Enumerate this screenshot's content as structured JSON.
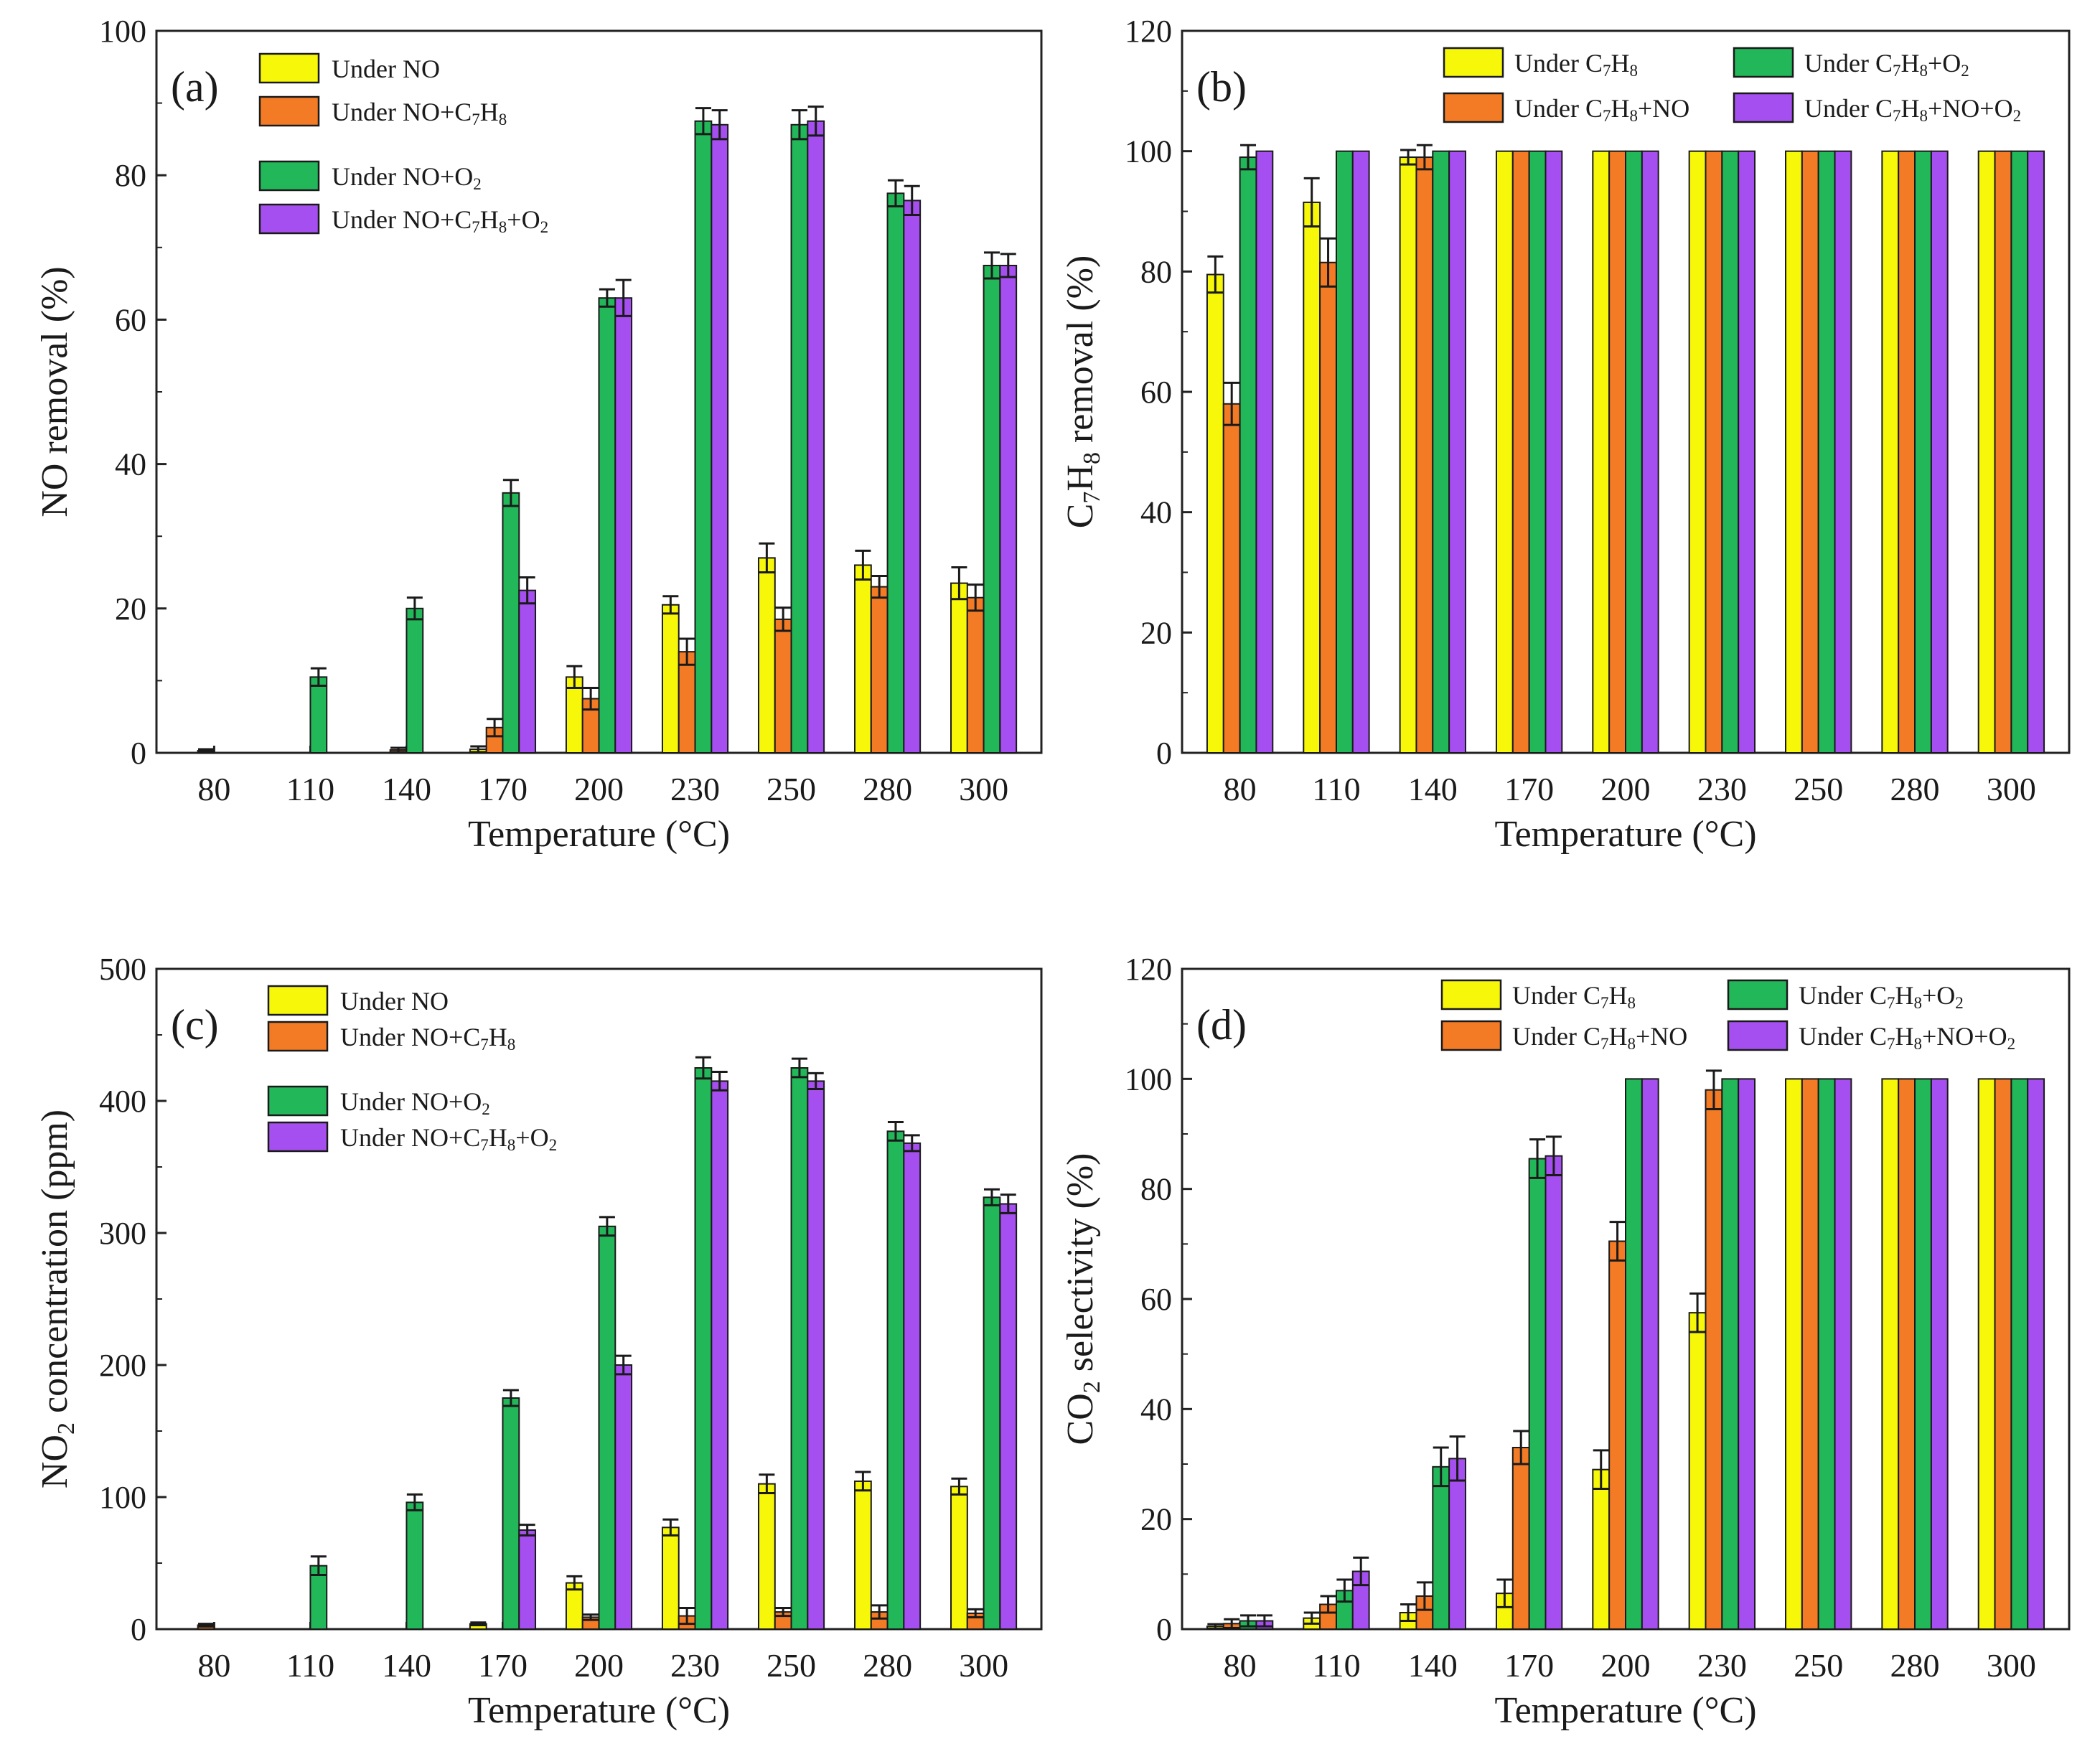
{
  "colors": {
    "yellow": "#f7f70a",
    "orange": "#f47b25",
    "green": "#22b85a",
    "purple": "#a64ff0",
    "axis": "#222222"
  },
  "chart_data": [
    {
      "id": "a",
      "panel_label": "(a)",
      "type": "bar",
      "xlabel": "Temperature (°C)",
      "ylabel": "NO removal (%)",
      "ylim": [
        0,
        100
      ],
      "yticks": [
        "0",
        "20",
        "40",
        "60",
        "80",
        "100"
      ],
      "categories": [
        "80",
        "110",
        "140",
        "170",
        "200",
        "230",
        "250",
        "280",
        "300"
      ],
      "legend": {
        "layout": "single-column",
        "position": "top-left"
      },
      "series": [
        {
          "name": "Under NO",
          "sub": "",
          "sup": "",
          "parts": [
            [
              "Under NO",
              ""
            ]
          ],
          "color": "yellow",
          "values": [
            0,
            0,
            0,
            0.5,
            10.5,
            20.5,
            27,
            26,
            23.5
          ],
          "errors": [
            0,
            0,
            0,
            0.4,
            1.5,
            1.2,
            2,
            2,
            2.2
          ]
        },
        {
          "name": "Under NO+C7H8",
          "parts": [
            [
              "Under NO+C",
              ""
            ],
            [
              "7",
              "sub"
            ],
            [
              "H",
              ""
            ],
            [
              "8",
              "sub"
            ]
          ],
          "color": "orange",
          "values": [
            0.3,
            0,
            0.4,
            3.5,
            7.5,
            14,
            18.5,
            23,
            21.5
          ],
          "errors": [
            0.2,
            0,
            0.3,
            1.2,
            1.5,
            1.8,
            1.6,
            1.5,
            1.8
          ]
        },
        {
          "name": "Under NO+O2",
          "parts": [
            [
              "Under NO+O",
              ""
            ],
            [
              "2",
              "sub"
            ]
          ],
          "color": "green",
          "values": [
            0,
            10.5,
            20,
            36,
            63,
            87.5,
            87,
            77.5,
            67.5
          ],
          "errors": [
            0,
            1.2,
            1.5,
            1.8,
            1.2,
            1.8,
            2,
            1.8,
            1.8
          ]
        },
        {
          "name": "Under NO+C7H8+O2",
          "parts": [
            [
              "Under NO+C",
              ""
            ],
            [
              "7",
              "sub"
            ],
            [
              "H",
              ""
            ],
            [
              "8",
              "sub"
            ],
            [
              "+O",
              ""
            ],
            [
              "2",
              "sub"
            ]
          ],
          "color": "purple",
          "values": [
            0,
            0,
            0,
            22.5,
            63,
            87,
            87.5,
            76.5,
            67.5
          ],
          "errors": [
            0,
            0,
            0,
            1.8,
            2.5,
            2,
            2,
            2,
            1.6
          ]
        }
      ]
    },
    {
      "id": "b",
      "panel_label": "(b)",
      "type": "bar",
      "xlabel": "Temperature (°C)",
      "ylabel": "C7H8 removal (%)",
      "ylabel_parts": [
        [
          "C",
          ""
        ],
        [
          "7",
          "sub"
        ],
        [
          "H",
          ""
        ],
        [
          "8",
          "sub"
        ],
        [
          " removal (%)",
          ""
        ]
      ],
      "ylim": [
        0,
        120
      ],
      "yticks": [
        "0",
        "20",
        "40",
        "60",
        "80",
        "100",
        "120"
      ],
      "categories": [
        "80",
        "110",
        "140",
        "170",
        "200",
        "230",
        "250",
        "280",
        "300"
      ],
      "legend": {
        "layout": "two-column",
        "position": "top"
      },
      "series": [
        {
          "name": "Under C7H8",
          "parts": [
            [
              "Under C",
              ""
            ],
            [
              "7",
              "sub"
            ],
            [
              "H",
              ""
            ],
            [
              "8",
              "sub"
            ]
          ],
          "color": "yellow",
          "values": [
            79.5,
            91.5,
            99,
            100,
            100,
            100,
            100,
            100,
            100
          ],
          "errors": [
            3,
            4,
            1.2,
            0,
            0,
            0,
            0,
            0,
            0
          ]
        },
        {
          "name": "Under C7H8+NO",
          "parts": [
            [
              "Under C",
              ""
            ],
            [
              "7",
              "sub"
            ],
            [
              "H",
              ""
            ],
            [
              "8",
              "sub"
            ],
            [
              "+NO",
              ""
            ]
          ],
          "color": "orange",
          "values": [
            58,
            81.5,
            99,
            100,
            100,
            100,
            100,
            100,
            100
          ],
          "errors": [
            3.5,
            4,
            2,
            0,
            0,
            0,
            0,
            0,
            0
          ]
        },
        {
          "name": "Under C7H8+O2",
          "parts": [
            [
              "Under C",
              ""
            ],
            [
              "7",
              "sub"
            ],
            [
              "H",
              ""
            ],
            [
              "8",
              "sub"
            ],
            [
              "+O",
              ""
            ],
            [
              "2",
              "sub"
            ]
          ],
          "color": "green",
          "values": [
            99,
            100,
            100,
            100,
            100,
            100,
            100,
            100,
            100
          ],
          "errors": [
            2,
            0,
            0,
            0,
            0,
            0,
            0,
            0,
            0
          ]
        },
        {
          "name": "Under C7H8+NO+O2",
          "parts": [
            [
              "Under C",
              ""
            ],
            [
              "7",
              "sub"
            ],
            [
              "H",
              ""
            ],
            [
              "8",
              "sub"
            ],
            [
              "+NO+O",
              ""
            ],
            [
              "2",
              "sub"
            ]
          ],
          "color": "purple",
          "values": [
            100,
            100,
            100,
            100,
            100,
            100,
            100,
            100,
            100
          ],
          "errors": [
            0,
            0,
            0,
            0,
            0,
            0,
            0,
            0,
            0
          ]
        }
      ]
    },
    {
      "id": "c",
      "panel_label": "(c)",
      "type": "bar",
      "xlabel": "Temperature (°C)",
      "ylabel": "NO2 concentration (ppm)",
      "ylabel_parts": [
        [
          "NO",
          ""
        ],
        [
          "2",
          "sub"
        ],
        [
          " concentration (ppm)",
          ""
        ]
      ],
      "ylim": [
        0,
        500
      ],
      "yticks": [
        "0",
        "100",
        "200",
        "300",
        "400",
        "500"
      ],
      "categories": [
        "80",
        "110",
        "140",
        "170",
        "200",
        "230",
        "250",
        "280",
        "300"
      ],
      "legend": {
        "layout": "single-column",
        "position": "top-left"
      },
      "series": [
        {
          "name": "Under NO",
          "parts": [
            [
              "Under NO",
              ""
            ]
          ],
          "color": "yellow",
          "values": [
            0,
            0,
            0,
            4,
            35,
            77,
            110,
            112,
            108
          ],
          "errors": [
            0,
            0,
            0,
            1,
            5,
            6,
            7,
            7,
            6
          ]
        },
        {
          "name": "Under NO+C7H8",
          "parts": [
            [
              "Under NO+C",
              ""
            ],
            [
              "7",
              "sub"
            ],
            [
              "H",
              ""
            ],
            [
              "8",
              "sub"
            ]
          ],
          "color": "orange",
          "values": [
            3,
            0,
            0,
            0,
            9,
            10,
            13,
            13,
            12
          ],
          "errors": [
            1,
            0,
            0,
            0,
            2,
            6,
            3,
            5,
            3
          ]
        },
        {
          "name": "Under NO+O2",
          "parts": [
            [
              "Under NO+O",
              ""
            ],
            [
              "2",
              "sub"
            ]
          ],
          "color": "green",
          "values": [
            0,
            48,
            96,
            175,
            305,
            425,
            425,
            377,
            327
          ],
          "errors": [
            0,
            7,
            6,
            6,
            7,
            8,
            7,
            7,
            6
          ]
        },
        {
          "name": "Under NO+C7H8+O2",
          "parts": [
            [
              "Under NO+C",
              ""
            ],
            [
              "7",
              "sub"
            ],
            [
              "H",
              ""
            ],
            [
              "8",
              "sub"
            ],
            [
              "+O",
              ""
            ],
            [
              "2",
              "sub"
            ]
          ],
          "color": "purple",
          "values": [
            0,
            0,
            0,
            75,
            200,
            415,
            415,
            368,
            322
          ],
          "errors": [
            0,
            0,
            0,
            4,
            7,
            7,
            6,
            6,
            7
          ]
        }
      ]
    },
    {
      "id": "d",
      "panel_label": "(d)",
      "type": "bar",
      "xlabel": "Temperature (°C)",
      "ylabel": "CO2 selectivity (%)",
      "ylabel_parts": [
        [
          "CO",
          ""
        ],
        [
          "2",
          "sub"
        ],
        [
          " selectivity (%)",
          ""
        ]
      ],
      "ylim": [
        0,
        120
      ],
      "yticks": [
        "0",
        "20",
        "40",
        "60",
        "80",
        "100",
        "120"
      ],
      "categories": [
        "80",
        "110",
        "140",
        "170",
        "200",
        "230",
        "250",
        "280",
        "300"
      ],
      "legend": {
        "layout": "two-column",
        "position": "top"
      },
      "series": [
        {
          "name": "Under C7H8",
          "parts": [
            [
              "Under C",
              ""
            ],
            [
              "7",
              "sub"
            ],
            [
              "H",
              ""
            ],
            [
              "8",
              "sub"
            ]
          ],
          "color": "yellow",
          "values": [
            0.5,
            2,
            3,
            6.5,
            29,
            57.5,
            100,
            100,
            100
          ],
          "errors": [
            0.4,
            1,
            1.5,
            2.5,
            3.5,
            3.5,
            0,
            0,
            0
          ]
        },
        {
          "name": "Under C7H8+NO",
          "parts": [
            [
              "Under C",
              ""
            ],
            [
              "7",
              "sub"
            ],
            [
              "H",
              ""
            ],
            [
              "8",
              "sub"
            ],
            [
              "+NO",
              ""
            ]
          ],
          "color": "orange",
          "values": [
            1,
            4.5,
            6,
            33,
            70.5,
            98,
            100,
            100,
            100
          ],
          "errors": [
            0.8,
            1.5,
            2.5,
            3,
            3.5,
            3.5,
            0,
            0,
            0
          ]
        },
        {
          "name": "Under C7H8+O2",
          "parts": [
            [
              "Under C",
              ""
            ],
            [
              "7",
              "sub"
            ],
            [
              "H",
              ""
            ],
            [
              "8",
              "sub"
            ],
            [
              "+O",
              ""
            ],
            [
              "2",
              "sub"
            ]
          ],
          "color": "green",
          "values": [
            1.5,
            7,
            29.5,
            85.5,
            100,
            100,
            100,
            100,
            100
          ],
          "errors": [
            1,
            2,
            3.5,
            3.5,
            0,
            0,
            0,
            0,
            0
          ]
        },
        {
          "name": "Under C7H8+NO+O2",
          "parts": [
            [
              "Under C",
              ""
            ],
            [
              "7",
              "sub"
            ],
            [
              "H",
              ""
            ],
            [
              "8",
              "sub"
            ],
            [
              "+NO+O",
              ""
            ],
            [
              "2",
              "sub"
            ]
          ],
          "color": "purple",
          "values": [
            1.5,
            10.5,
            31,
            86,
            100,
            100,
            100,
            100,
            100
          ],
          "errors": [
            1,
            2.5,
            4,
            3.5,
            0,
            0,
            0,
            0,
            0
          ]
        }
      ]
    }
  ]
}
